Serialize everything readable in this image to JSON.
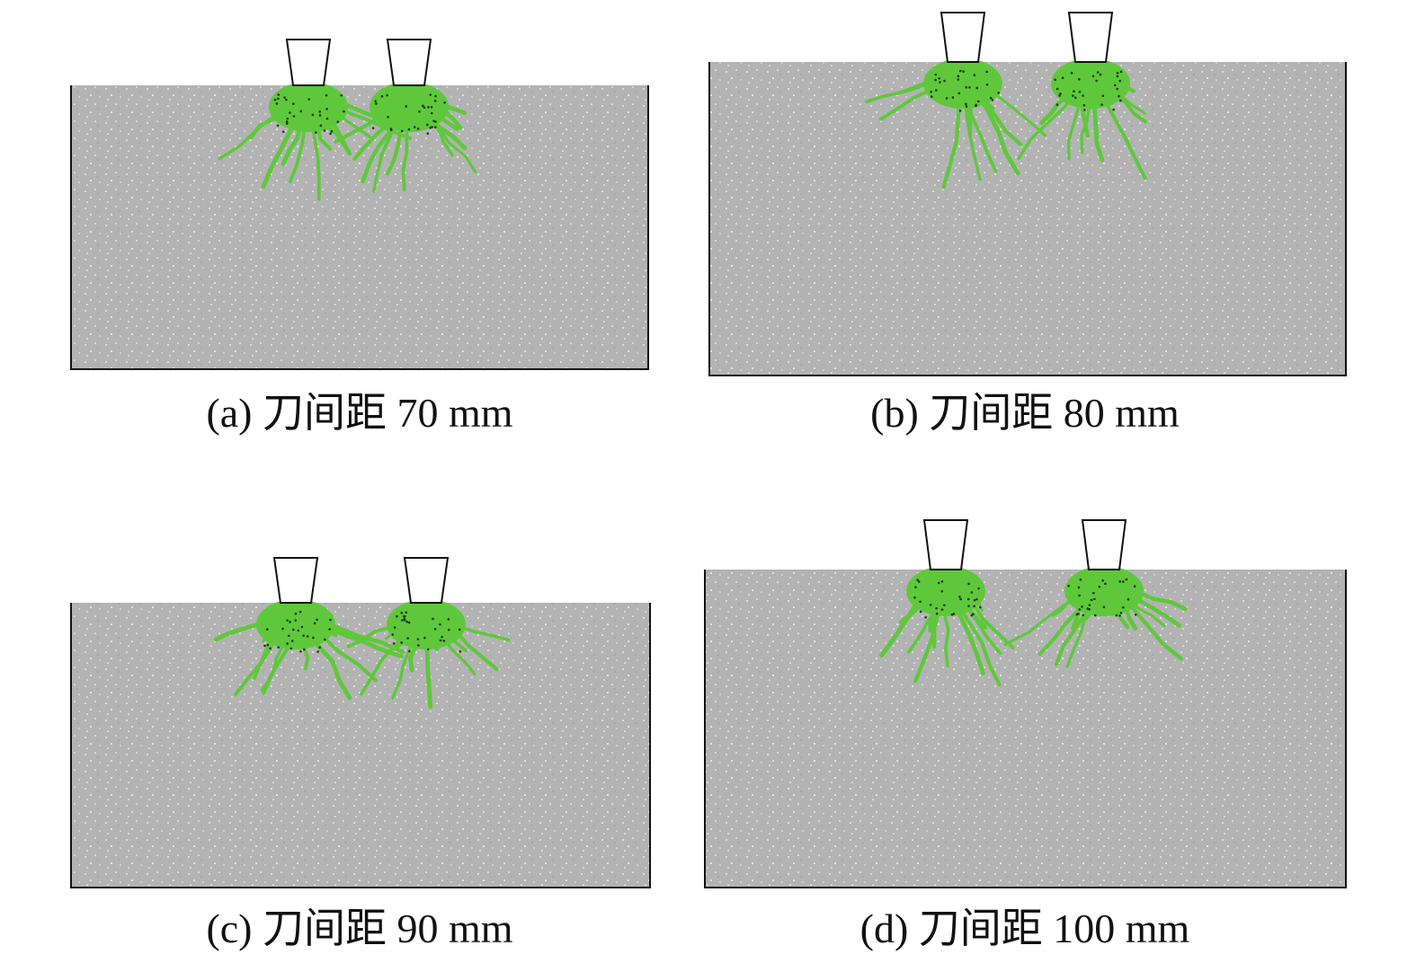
{
  "figure": {
    "panels": [
      {
        "caption": "(a) 刀间距 70 mm"
      },
      {
        "caption": "(b) 刀间距 80 mm"
      },
      {
        "caption": "(c) 刀间距 90 mm"
      },
      {
        "caption": "(d) 刀间距 100 mm"
      }
    ]
  }
}
